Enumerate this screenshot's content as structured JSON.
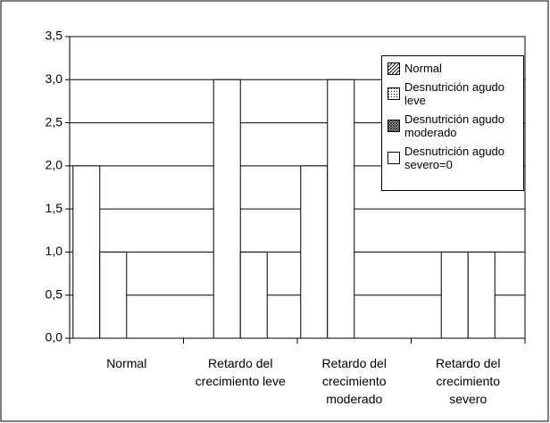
{
  "chart_data": {
    "type": "bar",
    "categories": [
      "Normal",
      "Retardo del crecimiento leve",
      "Retardo del crecimiento moderado",
      "Retardo del crecimiento severo"
    ],
    "series": [
      {
        "name": "Normal",
        "color": "#ffffff",
        "values": [
          2,
          0,
          2,
          0
        ]
      },
      {
        "name": "Desnutrición agudo leve",
        "color": "#ffffff",
        "values": [
          1,
          3,
          3,
          1
        ]
      },
      {
        "name": "Desnutrición agudo moderado",
        "color": "#ffffff",
        "values": [
          0,
          1,
          0,
          1
        ]
      },
      {
        "name": "Desnutrición agudo severo=0",
        "color": "#ffffff",
        "values": [
          0,
          0,
          0,
          0
        ]
      }
    ],
    "ylim": [
      0,
      3.5
    ],
    "yticks": [
      {
        "value": 0,
        "label": "0,0"
      },
      {
        "value": 0.5,
        "label": "0,5"
      },
      {
        "value": 1,
        "label": "1,0"
      },
      {
        "value": 1.5,
        "label": "1,5"
      },
      {
        "value": 2,
        "label": "2,0"
      },
      {
        "value": 2.5,
        "label": "2,5"
      },
      {
        "value": 3,
        "label": "3,0"
      },
      {
        "value": 3.5,
        "label": "3,5"
      }
    ],
    "grid": true,
    "legend": "upper right"
  }
}
